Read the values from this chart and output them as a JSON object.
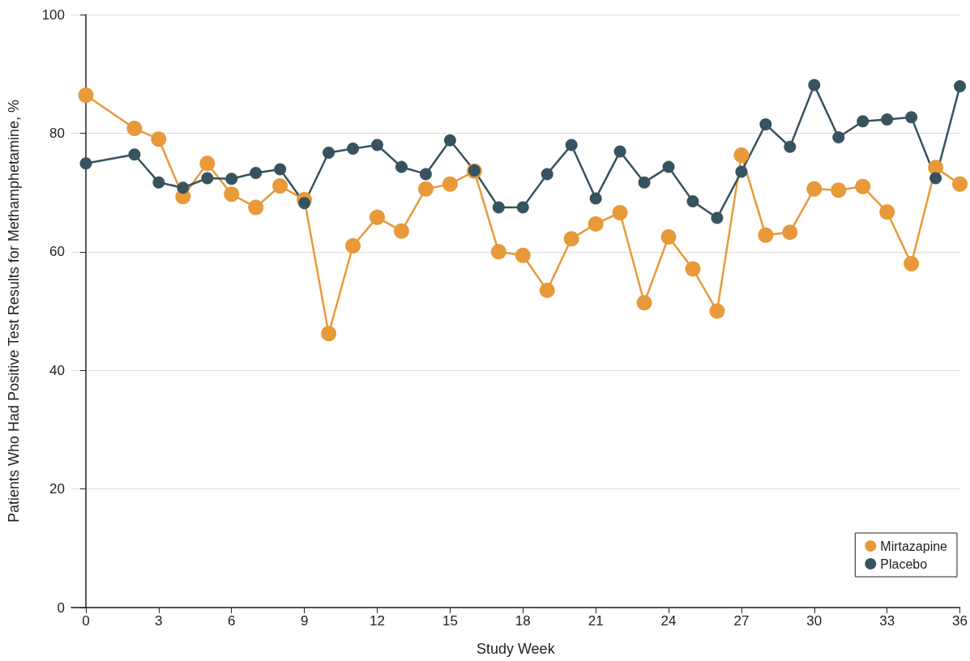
{
  "chart_data": {
    "type": "line",
    "xlabel": "Study Week",
    "ylabel": "Patients Who Had Positive Test Results for Methamphetamine, %",
    "x": [
      0,
      2,
      3,
      4,
      5,
      6,
      7,
      8,
      9,
      10,
      11,
      12,
      13,
      14,
      15,
      16,
      17,
      18,
      19,
      20,
      21,
      22,
      23,
      24,
      25,
      26,
      27,
      28,
      29,
      30,
      31,
      32,
      33,
      34,
      35,
      36
    ],
    "series": [
      {
        "name": "Mirtazapine",
        "color": "#e8993a",
        "values": [
          86.4,
          80.8,
          79.0,
          69.3,
          74.9,
          69.7,
          67.5,
          71.1,
          68.8,
          46.2,
          61.0,
          65.8,
          63.5,
          70.6,
          71.4,
          73.6,
          60.0,
          59.4,
          53.5,
          62.2,
          64.7,
          66.6,
          51.4,
          62.5,
          57.1,
          50.0,
          76.3,
          62.8,
          63.3,
          70.6,
          70.4,
          71.0,
          66.7,
          58.0,
          74.2,
          71.4
        ]
      },
      {
        "name": "Placebo",
        "color": "#37535f",
        "values": [
          74.9,
          76.4,
          71.7,
          70.8,
          72.4,
          72.3,
          73.3,
          73.9,
          68.2,
          76.7,
          77.4,
          78.0,
          74.3,
          73.1,
          78.8,
          73.7,
          67.5,
          67.5,
          73.1,
          78.0,
          69.0,
          76.9,
          71.7,
          74.3,
          68.5,
          65.7,
          73.5,
          81.5,
          77.7,
          88.1,
          79.3,
          82.0,
          82.3,
          82.7,
          72.4,
          87.9
        ]
      }
    ],
    "xlim": [
      -0.6,
      36
    ],
    "xticks": [
      0,
      3,
      6,
      9,
      12,
      15,
      18,
      21,
      24,
      27,
      30,
      33,
      36
    ],
    "ylim": [
      0,
      100
    ],
    "yticks": [
      0,
      20,
      40,
      60,
      80,
      100
    ],
    "grid": "y",
    "legend": "bottom right",
    "marker": "circle",
    "line_style": "solid"
  }
}
